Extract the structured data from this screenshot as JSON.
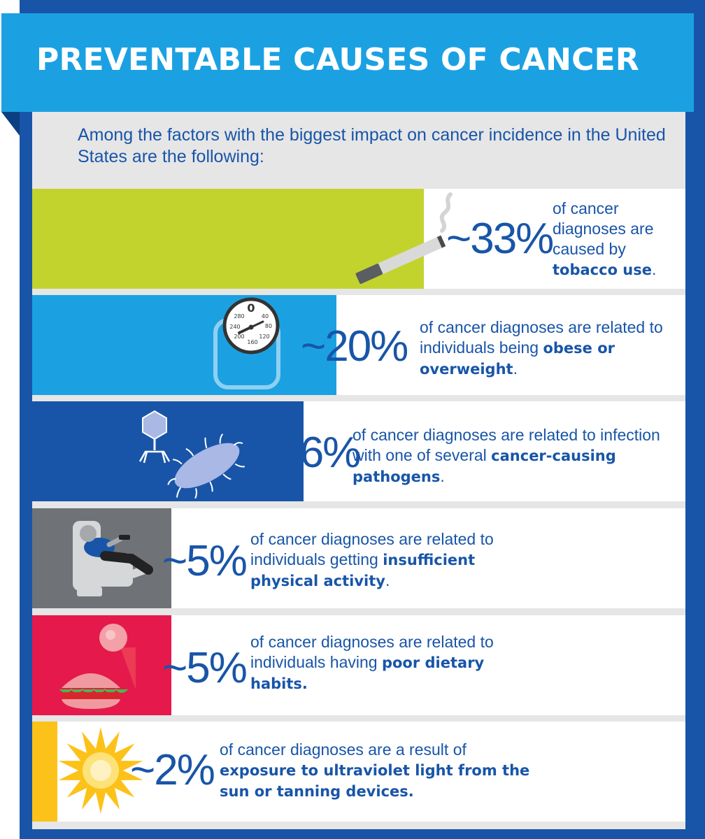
{
  "title": "PREVENTABLE CAUSES OF CANCER",
  "intro": "Among the factors with the biggest impact on cancer incidence in the United States are the following:",
  "colors": {
    "frame": "#1855a8",
    "banner": "#1ba1e2",
    "panel": "#e6e6e7",
    "text": "#1855a8",
    "tobacco": "#c3d32e",
    "obesity": "#1ba1e2",
    "pathogens": "#1855a8",
    "inactivity": "#6f7277",
    "diet": "#e5194b",
    "uv": "#fcc219"
  },
  "chart_data": {
    "type": "bar",
    "orientation": "horizontal",
    "unit": "%",
    "categories": [
      "tobacco use",
      "obese or overweight",
      "cancer-causing pathogens",
      "insufficient physical activity",
      "poor dietary habits",
      "exposure to ultraviolet light from the sun or tanning devices"
    ],
    "values": [
      33,
      20,
      16,
      5,
      5,
      2
    ],
    "xlim": [
      0,
      100
    ],
    "items": [
      {
        "value_label": "~33%",
        "desc_plain": "of cancer diagnoses are caused by",
        "desc_bold": "tobacco use",
        "desc_end": ".",
        "icon": "cigarette-icon",
        "color": "#c3d32e"
      },
      {
        "value_label": "~20%",
        "desc_plain": "of cancer diagnoses are related to individuals being",
        "desc_bold": "obese or overweight",
        "desc_end": ".",
        "icon": "weight-scale-icon",
        "color": "#1ba1e2",
        "scale_marks": [
          "0",
          "40",
          "80",
          "120",
          "160",
          "200",
          "240",
          "280"
        ]
      },
      {
        "value_label": "~16%",
        "desc_plain": "of cancer diagnoses are related to infection with one of several",
        "desc_bold": "cancer-causing pathogens",
        "desc_end": ".",
        "icon": "pathogen-icon",
        "color": "#1855a8"
      },
      {
        "value_label": "~5%",
        "desc_plain": "of cancer diagnoses are related to individuals getting",
        "desc_bold": "insufficient physical activity",
        "desc_end": ".",
        "icon": "recliner-icon",
        "color": "#6f7277"
      },
      {
        "value_label": "~5%",
        "desc_plain": "of cancer diagnoses are related to individuals having",
        "desc_bold": "poor dietary habits.",
        "desc_end": "",
        "icon": "junk-food-icon",
        "color": "#e5194b"
      },
      {
        "value_label": "~2%",
        "desc_plain": "of cancer diagnoses are a result of",
        "desc_bold": "exposure to ultraviolet light from the sun or tanning devices.",
        "desc_end": "",
        "icon": "sun-icon",
        "color": "#fcc219"
      }
    ]
  }
}
